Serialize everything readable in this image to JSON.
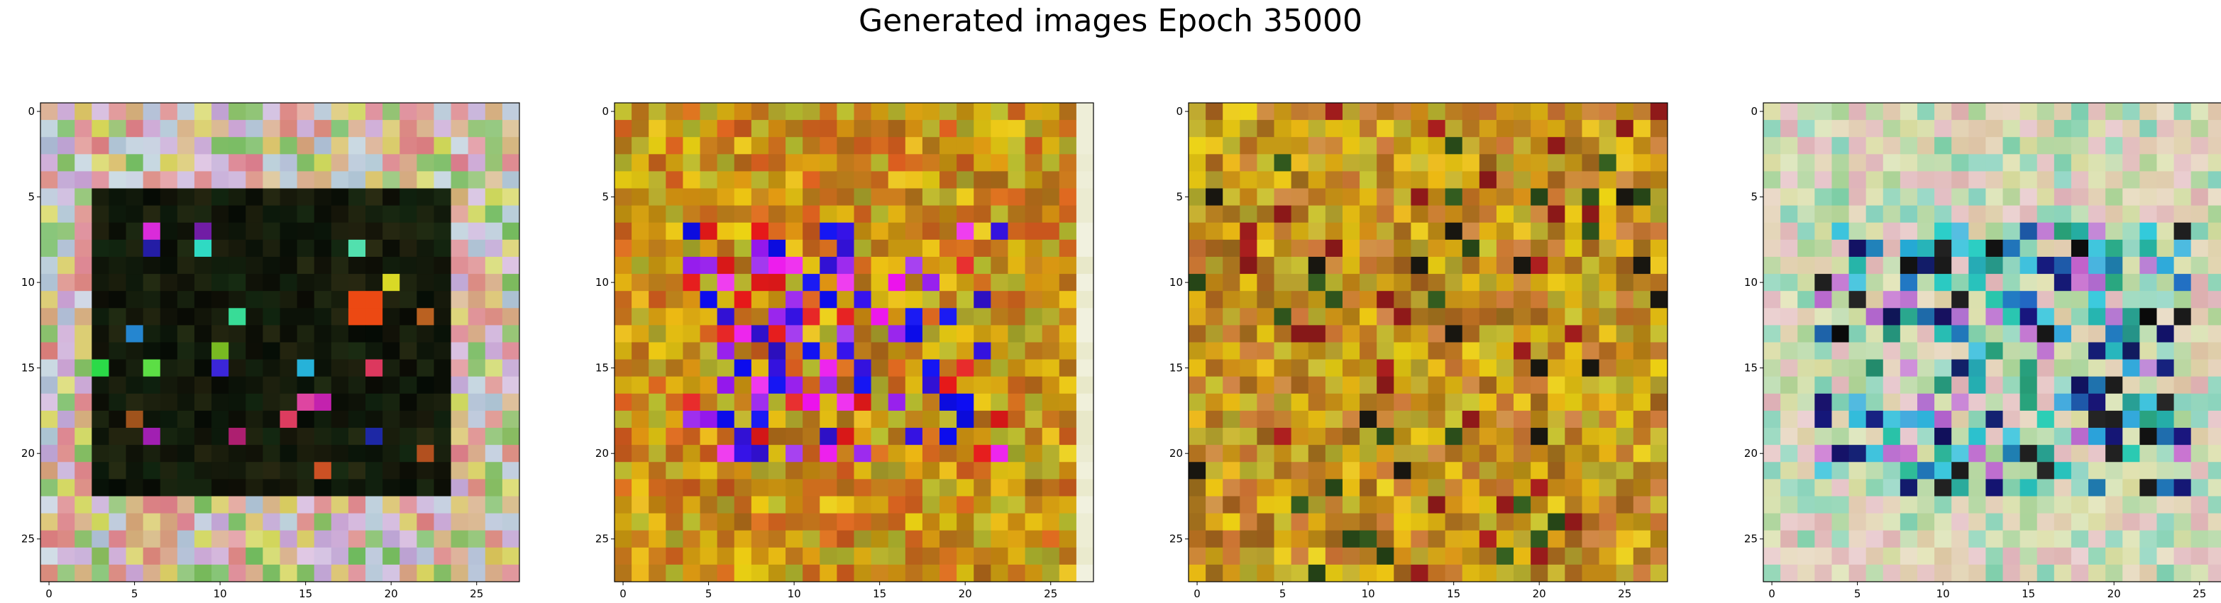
{
  "figure": {
    "title": "Generated images Epoch 35000"
  },
  "chart_data": [
    {
      "type": "heatmap",
      "content": "generated image",
      "theme": "warm pastel border, dark center",
      "grid": [
        28,
        28
      ],
      "xlim": [
        0,
        27
      ],
      "ylim": [
        27,
        0
      ],
      "xticks": [
        "0",
        "5",
        "10",
        "15",
        "20",
        "25"
      ],
      "yticks": [
        "0",
        "5",
        "10",
        "15",
        "20",
        "25"
      ]
    },
    {
      "type": "heatmap",
      "content": "generated image",
      "theme": "ochre with purple-blue center",
      "grid": [
        28,
        28
      ],
      "xlim": [
        0,
        27
      ],
      "ylim": [
        27,
        0
      ],
      "xticks": [
        "0",
        "5",
        "10",
        "15",
        "20",
        "25"
      ],
      "yticks": [
        "0",
        "5",
        "10",
        "15",
        "20",
        "25"
      ]
    },
    {
      "type": "heatmap",
      "content": "generated image",
      "theme": "ochre and brown",
      "grid": [
        28,
        28
      ],
      "xlim": [
        0,
        27
      ],
      "ylim": [
        27,
        0
      ],
      "xticks": [
        "0",
        "5",
        "10",
        "15",
        "20",
        "25"
      ],
      "yticks": [
        "0",
        "5",
        "10",
        "15",
        "20",
        "25"
      ]
    },
    {
      "type": "heatmap",
      "content": "generated image",
      "theme": "pastel with teal-cyan center",
      "grid": [
        28,
        28
      ],
      "xlim": [
        0,
        27
      ],
      "ylim": [
        27,
        0
      ],
      "xticks": [
        "0",
        "5",
        "10",
        "15",
        "20",
        "25"
      ],
      "yticks": [
        "0",
        "5",
        "10",
        "15",
        "20",
        "25"
      ]
    }
  ]
}
